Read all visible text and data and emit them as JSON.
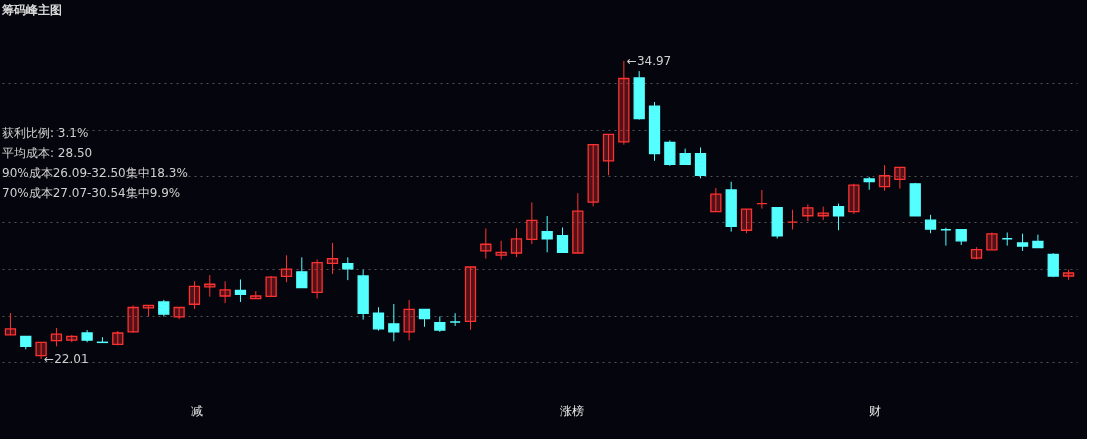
{
  "chart_data": {
    "type": "candlestick",
    "title": "筹码峰主图",
    "categories": [
      null,
      null,
      null,
      null,
      null,
      null,
      null,
      null,
      null,
      null,
      null,
      null,
      null,
      null,
      null,
      null,
      null,
      null,
      null,
      null,
      null,
      null,
      null,
      null,
      null,
      null,
      null,
      null,
      null,
      null,
      null,
      null,
      null,
      null,
      null,
      null,
      null,
      null,
      null,
      null,
      null,
      null,
      null,
      null,
      null,
      null,
      null,
      null,
      null,
      null,
      null,
      null,
      null,
      null,
      null,
      null,
      null,
      null,
      null,
      null,
      null,
      null,
      null,
      null,
      null,
      null,
      null,
      null,
      null,
      null
    ],
    "ohlc": [
      [
        23.06,
        24.01,
        23.05,
        23.32
      ],
      [
        22.99,
        22.99,
        22.43,
        22.56
      ],
      [
        22.16,
        22.73,
        22.01,
        22.73
      ],
      [
        22.81,
        23.36,
        22.56,
        23.09
      ],
      [
        22.83,
        23.05,
        22.74,
        22.99
      ],
      [
        23.14,
        23.27,
        22.74,
        22.83
      ],
      [
        22.74,
        22.96,
        22.73,
        22.73
      ],
      [
        22.65,
        23.23,
        22.6,
        23.14
      ],
      [
        23.19,
        24.34,
        23.15,
        24.25
      ],
      [
        24.23,
        24.34,
        23.86,
        24.34
      ],
      [
        24.49,
        24.58,
        23.86,
        23.96
      ],
      [
        23.84,
        24.25,
        23.74,
        24.25
      ],
      [
        24.39,
        25.39,
        24.19,
        25.17
      ],
      [
        25.15,
        25.66,
        24.72,
        25.26
      ],
      [
        24.75,
        25.39,
        24.44,
        25.02
      ],
      [
        24.99,
        25.47,
        24.49,
        24.82
      ],
      [
        24.64,
        24.97,
        24.64,
        24.75
      ],
      [
        24.73,
        25.62,
        24.73,
        25.57
      ],
      [
        25.6,
        26.52,
        25.35,
        25.92
      ],
      [
        25.8,
        26.43,
        25.12,
        25.12
      ],
      [
        24.91,
        26.34,
        24.64,
        26.2
      ],
      [
        26.17,
        27.06,
        25.71,
        26.37
      ],
      [
        26.16,
        26.43,
        25.44,
        25.93
      ],
      [
        25.62,
        25.89,
        23.72,
        24.0
      ],
      [
        24.0,
        24.26,
        23.24,
        23.32
      ],
      [
        23.54,
        24.4,
        22.78,
        23.19
      ],
      [
        23.19,
        24.58,
        22.82,
        24.17
      ],
      [
        24.17,
        24.17,
        23.41,
        23.77
      ],
      [
        23.59,
        23.86,
        23.19,
        23.27
      ],
      [
        23.62,
        24.0,
        23.45,
        23.62
      ],
      [
        23.65,
        26.01,
        23.28,
        26.01
      ],
      [
        26.71,
        27.69,
        26.38,
        27.0
      ],
      [
        26.53,
        27.15,
        26.34,
        26.65
      ],
      [
        26.62,
        27.69,
        26.44,
        27.23
      ],
      [
        27.21,
        28.82,
        27.01,
        28.04
      ],
      [
        27.55,
        28.23,
        26.65,
        27.24
      ],
      [
        27.37,
        27.73,
        26.65,
        26.65
      ],
      [
        26.62,
        29.22,
        26.62,
        28.44
      ],
      [
        28.83,
        31.33,
        28.65,
        31.33
      ],
      [
        30.63,
        31.78,
        30.0,
        31.78
      ],
      [
        31.45,
        34.97,
        31.33,
        34.21
      ],
      [
        34.23,
        34.53,
        32.42,
        32.47
      ],
      [
        33.01,
        33.19,
        30.63,
        30.94
      ],
      [
        31.43,
        31.52,
        30.41,
        30.48
      ],
      [
        30.94,
        31.16,
        30.48,
        30.48
      ],
      [
        30.94,
        31.21,
        29.87,
        30.0
      ],
      [
        28.42,
        29.45,
        28.42,
        29.18
      ],
      [
        29.36,
        29.72,
        27.55,
        27.78
      ],
      [
        27.61,
        28.53,
        27.48,
        28.53
      ],
      [
        28.77,
        29.36,
        28.55,
        28.77
      ],
      [
        28.59,
        28.59,
        27.25,
        27.37
      ],
      [
        27.96,
        28.5,
        27.64,
        27.96
      ],
      [
        28.24,
        28.73,
        28.0,
        28.58
      ],
      [
        28.24,
        28.64,
        28.05,
        28.35
      ],
      [
        28.64,
        28.77,
        27.61,
        28.24
      ],
      [
        28.42,
        29.63,
        28.32,
        29.57
      ],
      [
        29.84,
        29.93,
        29.37,
        29.73
      ],
      [
        29.51,
        30.44,
        29.33,
        29.98
      ],
      [
        29.82,
        30.34,
        29.42,
        30.34
      ],
      [
        29.63,
        29.67,
        28.24,
        28.24
      ],
      [
        28.05,
        28.28,
        27.48,
        27.66
      ],
      [
        27.63,
        27.72,
        26.94,
        27.63
      ],
      [
        27.64,
        27.64,
        26.97,
        27.15
      ],
      [
        26.4,
        26.87,
        26.34,
        26.77
      ],
      [
        26.76,
        27.51,
        26.76,
        27.45
      ],
      [
        27.24,
        27.51,
        26.94,
        27.24
      ],
      [
        27.06,
        27.46,
        26.71,
        26.92
      ],
      [
        27.12,
        27.42,
        26.85,
        26.85
      ],
      [
        26.56,
        26.61,
        25.57,
        25.62
      ],
      [
        25.62,
        25.9,
        25.45,
        25.75
      ]
    ],
    "colors": [
      "#ff3232",
      "#54ffff",
      "#ff3232",
      "#ff3232",
      "#ff3232",
      "#54ffff",
      "#54ffff",
      "#ff3232",
      "#ff3232",
      "#ff3232",
      "#54ffff",
      "#ff3232",
      "#ff3232",
      "#ff3232",
      "#ff3232",
      "#54ffff",
      "#ff3232",
      "#ff3232",
      "#ff3232",
      "#54ffff",
      "#ff3232",
      "#ff3232",
      "#54ffff",
      "#54ffff",
      "#54ffff",
      "#54ffff",
      "#ff3232",
      "#54ffff",
      "#54ffff",
      "#54ffff",
      "#ff3232",
      "#ff3232",
      "#ff3232",
      "#ff3232",
      "#ff3232",
      "#54ffff",
      "#54ffff",
      "#ff3232",
      "#ff3232",
      "#ff3232",
      "#ff3232",
      "#54ffff",
      "#54ffff",
      "#54ffff",
      "#54ffff",
      "#54ffff",
      "#ff3232",
      "#54ffff",
      "#ff3232",
      "#ff3232",
      "#54ffff",
      "#ff3232",
      "#ff3232",
      "#ff3232",
      "#54ffff",
      "#ff3232",
      "#54ffff",
      "#ff3232",
      "#ff3232",
      "#54ffff",
      "#54ffff",
      "#54ffff",
      "#54ffff",
      "#ff3232",
      "#ff3232",
      "#54ffff",
      "#54ffff",
      "#54ffff",
      "#54ffff",
      "#ff3232"
    ],
    "yticks": [
      {
        "value": 34.0,
        "label": null
      },
      {
        "value": 31.97,
        "label": null
      },
      {
        "value": 29.97,
        "label": null
      },
      {
        "value": 27.95,
        "label": null
      },
      {
        "value": 25.92,
        "label": null
      },
      {
        "value": 23.89,
        "label": null
      },
      {
        "value": 21.87,
        "label": null
      }
    ],
    "grid": "y",
    "tick_labels": false,
    "annotations": [
      "获利比例: 3.1%",
      "平均成本: 28.50",
      "90%成本26.09-32.50集中18.3%",
      "70%成本27.07-30.54集中9.9%",
      "←34.97",
      "←22.01",
      "减",
      "涨榜",
      "财"
    ]
  }
}
